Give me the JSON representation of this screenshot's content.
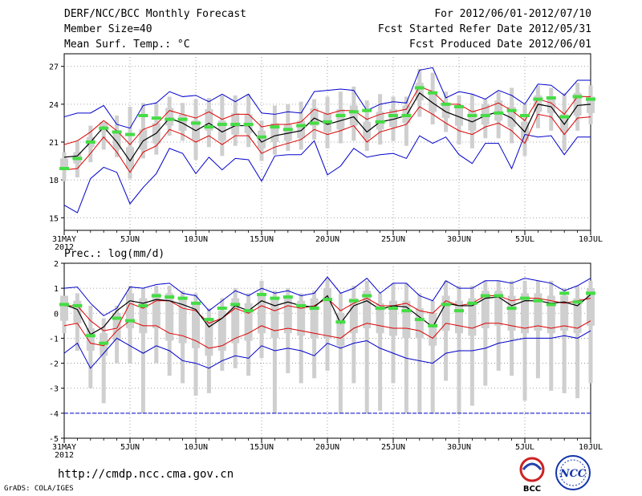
{
  "header": {
    "title": "DERF/NCC/BCC Monthly Forecast",
    "member_size": "Member Size=40",
    "variable": "Mean Surf. Temp.: °C",
    "period": "For 2012/06/01-2012/07/10",
    "start_date": "Fcst Started Refer Date 2012/05/31",
    "produced_date": "Fcst Produced Date 2012/06/01"
  },
  "footer": {
    "url": "http://cmdp.ncc.cma.gov.cn",
    "credit": "GrADS: COLA/IGES",
    "logo_bcc": "BCC",
    "logo_ncc": "NCC"
  },
  "colors": {
    "envelope_max": "#0000cc",
    "envelope_min": "#0000cc",
    "upper_spread": "#dd0000",
    "lower_spread": "#dd0000",
    "ensemble_mean": "#000000",
    "climatology_marker": "#44dd44",
    "box": "#cfcfcf",
    "grid": "#888888"
  },
  "chart_data": [
    {
      "type": "line",
      "title": "Mean Surf. Temp.: °C",
      "xlabel": "",
      "ylabel": "",
      "x": [
        0,
        1,
        2,
        3,
        4,
        5,
        6,
        7,
        8,
        9,
        10,
        11,
        12,
        13,
        14,
        15,
        16,
        17,
        18,
        19,
        20,
        21,
        22,
        23,
        24,
        25,
        26,
        27,
        28,
        29,
        30,
        31,
        32,
        33,
        34,
        35,
        36,
        37,
        38,
        39,
        40
      ],
      "x_tick_positions": [
        0,
        5,
        10,
        15,
        20,
        25,
        30,
        35,
        40
      ],
      "x_tick_labels": [
        "31MAY",
        "5JUN",
        "10JUN",
        "15JUN",
        "20JUN",
        "25JUN",
        "30JUN",
        "5JUL",
        "10JUL"
      ],
      "x_year_label": "2012",
      "ylim": [
        14,
        28
      ],
      "yticks": [
        15,
        18,
        21,
        24,
        27
      ],
      "ytick_labels": [
        "15",
        "18",
        "21",
        "24",
        "27"
      ],
      "grid": true,
      "series": [
        {
          "name": "max",
          "values": [
            23.0,
            23.3,
            23.3,
            23.9,
            22.4,
            22.1,
            23.9,
            24.1,
            25.0,
            24.6,
            24.7,
            24.2,
            24.8,
            24.2,
            24.8,
            23.3,
            23.2,
            23.4,
            23.3,
            25.0,
            25.1,
            25.2,
            25.1,
            23.5,
            24.0,
            24.2,
            24.1,
            26.7,
            26.9,
            24.5,
            25.0,
            24.8,
            24.4,
            25.1,
            24.7,
            24.0,
            25.6,
            25.5,
            24.7,
            25.9,
            25.9
          ]
        },
        {
          "name": "upper",
          "values": [
            20.8,
            21.1,
            21.8,
            22.7,
            21.9,
            20.8,
            22.0,
            22.4,
            23.5,
            23.2,
            22.9,
            23.4,
            22.8,
            23.2,
            23.2,
            22.2,
            22.4,
            22.4,
            22.6,
            23.6,
            23.2,
            23.5,
            23.5,
            22.8,
            23.2,
            23.4,
            23.6,
            25.4,
            25.0,
            24.0,
            24.0,
            23.4,
            23.7,
            24.1,
            23.5,
            22.7,
            24.4,
            24.1,
            23.2,
            24.6,
            24.6
          ]
        },
        {
          "name": "mean",
          "values": [
            19.8,
            19.9,
            21.0,
            22.2,
            21.0,
            19.5,
            21.1,
            21.7,
            22.9,
            22.5,
            21.9,
            22.5,
            21.8,
            22.3,
            22.3,
            21.0,
            21.5,
            21.7,
            21.9,
            22.9,
            22.4,
            22.7,
            23.0,
            21.8,
            22.6,
            22.8,
            23.1,
            24.9,
            24.1,
            23.4,
            23.0,
            22.6,
            23.1,
            23.4,
            22.9,
            21.8,
            24.0,
            23.8,
            22.4,
            23.9,
            24.0
          ]
        },
        {
          "name": "lower",
          "values": [
            18.8,
            18.9,
            20.1,
            21.4,
            20.2,
            18.6,
            20.2,
            20.7,
            22.0,
            21.6,
            21.0,
            21.5,
            20.8,
            21.5,
            21.5,
            20.1,
            20.6,
            20.9,
            21.2,
            22.0,
            21.6,
            21.9,
            22.3,
            21.0,
            21.8,
            22.1,
            22.4,
            23.8,
            23.2,
            22.5,
            21.9,
            21.6,
            22.2,
            22.5,
            21.9,
            20.9,
            23.2,
            23.0,
            21.6,
            22.9,
            23.0
          ]
        },
        {
          "name": "min",
          "values": [
            16.0,
            15.4,
            18.1,
            19.0,
            18.6,
            16.1,
            17.4,
            18.5,
            20.5,
            20.1,
            18.5,
            19.8,
            18.8,
            19.7,
            19.6,
            17.9,
            19.9,
            20.0,
            20.0,
            21.1,
            18.4,
            19.1,
            20.5,
            19.8,
            20.0,
            20.1,
            19.7,
            21.5,
            20.9,
            21.4,
            20.0,
            19.3,
            20.9,
            20.9,
            18.9,
            21.6,
            21.4,
            21.5,
            20.0,
            21.4,
            21.4
          ]
        },
        {
          "name": "climatology",
          "values": [
            18.9,
            19.7,
            21.0,
            22.1,
            21.8,
            21.6,
            23.1,
            22.9,
            22.8,
            22.8,
            22.5,
            22.2,
            22.4,
            22.4,
            22.4,
            21.4,
            22.2,
            22.0,
            22.3,
            22.5,
            22.6,
            23.1,
            23.4,
            23.5,
            22.6,
            23.1,
            23.1,
            25.3,
            24.9,
            24.0,
            23.8,
            23.1,
            23.1,
            23.3,
            23.5,
            23.1,
            24.4,
            24.5,
            23.0,
            24.6,
            24.4
          ]
        },
        {
          "name": "box_high",
          "values": [
            19.7,
            20.2,
            21.4,
            22.6,
            21.9,
            20.6,
            22.0,
            22.5,
            23.7,
            23.2,
            22.7,
            23.6,
            22.7,
            23.3,
            23.2,
            21.9,
            22.5,
            22.4,
            22.7,
            23.7,
            23.3,
            23.6,
            23.9,
            22.6,
            23.4,
            23.6,
            23.9,
            25.7,
            25.0,
            24.1,
            23.8,
            23.5,
            24.0,
            24.3,
            23.8,
            22.6,
            24.7,
            24.5,
            23.2,
            24.9,
            24.6
          ]
        },
        {
          "name": "box_low",
          "values": [
            19.0,
            19.3,
            20.6,
            21.8,
            20.4,
            18.9,
            20.4,
            20.9,
            22.3,
            21.9,
            21.2,
            21.9,
            21.1,
            21.6,
            21.7,
            20.5,
            21.0,
            21.1,
            21.3,
            22.3,
            21.8,
            22.0,
            22.3,
            21.3,
            22.0,
            22.2,
            22.5,
            24.3,
            23.4,
            22.9,
            22.3,
            21.9,
            22.4,
            22.7,
            22.2,
            21.1,
            23.4,
            23.3,
            21.8,
            23.1,
            23.3
          ]
        },
        {
          "name": "whisker_high",
          "values": [
            20.2,
            21.1,
            22.3,
            22.6,
            23.1,
            23.8,
            24.1,
            24.1,
            24.6,
            24.1,
            24.4,
            24.5,
            24.7,
            24.7,
            24.8,
            22.7,
            23.9,
            24.0,
            24.2,
            24.4,
            24.6,
            25.0,
            25.4,
            24.3,
            24.8,
            24.6,
            24.6,
            26.8,
            26.5,
            25.0,
            24.7,
            24.8,
            24.4,
            25.0,
            25.3,
            24.0,
            25.5,
            25.3,
            24.9,
            25.7,
            25.5
          ]
        },
        {
          "name": "whisker_low",
          "values": [
            17.9,
            18.2,
            19.4,
            20.4,
            19.8,
            18.1,
            19.7,
            20.0,
            21.5,
            21.1,
            19.6,
            20.6,
            19.9,
            20.7,
            20.6,
            19.5,
            20.0,
            20.3,
            20.4,
            21.2,
            20.5,
            20.9,
            21.1,
            20.3,
            20.8,
            21.1,
            20.7,
            23.0,
            22.4,
            21.8,
            20.8,
            20.5,
            21.3,
            21.3,
            20.9,
            19.9,
            22.1,
            21.9,
            20.3,
            21.9,
            22.4
          ]
        }
      ]
    },
    {
      "type": "line",
      "title": "Prec.: log(mm/d)",
      "xlabel": "",
      "ylabel": "",
      "x": [
        0,
        1,
        2,
        3,
        4,
        5,
        6,
        7,
        8,
        9,
        10,
        11,
        12,
        13,
        14,
        15,
        16,
        17,
        18,
        19,
        20,
        21,
        22,
        23,
        24,
        25,
        26,
        27,
        28,
        29,
        30,
        31,
        32,
        33,
        34,
        35,
        36,
        37,
        38,
        39,
        40
      ],
      "x_tick_positions": [
        0,
        5,
        10,
        15,
        20,
        25,
        30,
        35,
        40
      ],
      "x_tick_labels": [
        "31MAY",
        "5JUN",
        "10JUN",
        "15JUN",
        "20JUN",
        "25JUN",
        "30JUN",
        "5JUL",
        "10JUL"
      ],
      "x_year_label": "2012",
      "ylim": [
        -5,
        2
      ],
      "yticks": [
        -5,
        -4,
        -3,
        -2,
        -1,
        0,
        1,
        2
      ],
      "ytick_labels": [
        "-5",
        "-4",
        "-3",
        "-2",
        "-1",
        "0",
        "1",
        "2"
      ],
      "grid": true,
      "reference_line": -4,
      "series": [
        {
          "name": "max",
          "values": [
            1.0,
            1.05,
            0.4,
            -0.1,
            0.2,
            1.05,
            1.0,
            1.15,
            1.2,
            0.8,
            0.7,
            0.1,
            0.5,
            0.9,
            0.7,
            1.0,
            0.8,
            0.9,
            0.7,
            0.8,
            1.45,
            0.8,
            1.0,
            1.4,
            0.8,
            1.2,
            1.2,
            0.7,
            0.5,
            1.3,
            1.0,
            1.0,
            1.3,
            1.3,
            1.2,
            1.4,
            1.3,
            1.2,
            0.9,
            1.1,
            1.4
          ]
        },
        {
          "name": "upper",
          "values": [
            0.3,
            0.3,
            -0.3,
            -0.7,
            -0.6,
            0.4,
            0.2,
            0.5,
            0.5,
            0.2,
            0.1,
            -0.4,
            -0.2,
            0.2,
            0.0,
            0.3,
            0.1,
            0.3,
            0.2,
            0.3,
            0.6,
            0.1,
            0.4,
            0.6,
            0.3,
            0.3,
            0.4,
            0.1,
            0.0,
            0.5,
            0.3,
            0.4,
            0.7,
            0.7,
            0.5,
            0.6,
            0.6,
            0.5,
            0.4,
            0.5,
            0.6
          ]
        },
        {
          "name": "mean",
          "values": [
            0.35,
            0.15,
            -0.85,
            -0.55,
            0.1,
            0.5,
            0.4,
            0.55,
            0.5,
            0.35,
            0.15,
            -0.55,
            -0.2,
            0.3,
            0.1,
            0.5,
            0.3,
            0.45,
            0.3,
            0.25,
            0.7,
            -0.4,
            0.3,
            0.5,
            0.15,
            0.3,
            0.25,
            -0.15,
            -0.55,
            0.4,
            0.3,
            0.3,
            0.6,
            0.65,
            0.3,
            0.5,
            0.5,
            0.4,
            0.45,
            0.3,
            0.75
          ]
        },
        {
          "name": "lower",
          "values": [
            -0.5,
            -0.4,
            -1.2,
            -1.3,
            -0.7,
            -0.3,
            -0.5,
            -0.5,
            -0.8,
            -0.9,
            -1.1,
            -1.4,
            -1.3,
            -1.0,
            -0.8,
            -0.5,
            -0.7,
            -0.6,
            -0.7,
            -0.8,
            -0.9,
            -1.0,
            -0.6,
            -0.4,
            -0.5,
            -0.6,
            -0.6,
            -0.7,
            -1.0,
            -0.4,
            -0.5,
            -0.6,
            -0.4,
            -0.4,
            -0.5,
            -0.6,
            -0.5,
            -0.6,
            -0.5,
            -0.6,
            -0.3
          ]
        },
        {
          "name": "min",
          "values": [
            -1.6,
            -1.2,
            -2.2,
            -1.6,
            -1.0,
            -1.3,
            -1.6,
            -1.3,
            -1.5,
            -1.9,
            -2.0,
            -2.2,
            -1.9,
            -1.7,
            -1.8,
            -1.3,
            -1.5,
            -1.4,
            -1.5,
            -1.7,
            -1.2,
            -1.4,
            -1.2,
            -1.1,
            -1.4,
            -1.6,
            -1.8,
            -1.9,
            -2.0,
            -1.6,
            -1.5,
            -1.5,
            -1.4,
            -1.2,
            -1.1,
            -1.0,
            -1.0,
            -1.0,
            -0.9,
            -1.0,
            -0.7
          ]
        },
        {
          "name": "climatology",
          "values": [
            0.35,
            0.3,
            -0.9,
            -1.2,
            -0.2,
            -0.3,
            0.3,
            0.7,
            0.65,
            0.6,
            0.4,
            -0.25,
            0.2,
            0.35,
            0.1,
            0.75,
            0.6,
            0.65,
            0.3,
            0.2,
            0.55,
            -0.35,
            0.5,
            0.7,
            0.2,
            0.2,
            0.1,
            -0.25,
            -0.5,
            0.35,
            0.1,
            0.4,
            0.7,
            0.7,
            0.2,
            0.6,
            0.5,
            0.35,
            0.8,
            0.45,
            0.8
          ]
        },
        {
          "name": "box_high",
          "values": [
            0.7,
            0.5,
            -0.6,
            -0.8,
            0.0,
            0.8,
            0.6,
            0.8,
            0.8,
            0.6,
            0.4,
            -0.2,
            0.1,
            0.6,
            0.4,
            0.8,
            0.6,
            0.7,
            0.5,
            0.6,
            1.0,
            0.0,
            0.6,
            0.9,
            0.4,
            0.5,
            0.5,
            0.2,
            0.0,
            0.7,
            0.5,
            0.6,
            0.9,
            0.9,
            0.7,
            0.8,
            0.8,
            0.7,
            0.7,
            0.6,
            1.0
          ]
        },
        {
          "name": "box_low",
          "values": [
            -0.3,
            -0.4,
            -1.5,
            -1.7,
            -1.1,
            -0.6,
            -0.8,
            -0.6,
            -1.1,
            -1.2,
            -1.4,
            -1.7,
            -1.5,
            -1.2,
            -1.1,
            -0.8,
            -1.0,
            -0.8,
            -0.9,
            -1.0,
            -1.0,
            -1.3,
            -0.8,
            -0.6,
            -0.8,
            -0.9,
            -1.0,
            -1.0,
            -1.3,
            -0.7,
            -0.8,
            -0.9,
            -0.6,
            -0.5,
            -0.7,
            -0.8,
            -0.7,
            -0.8,
            -0.7,
            -0.8,
            -0.5
          ]
        },
        {
          "name": "whisker_high",
          "values": [
            0.6,
            0.8,
            0.3,
            -0.2,
            0.3,
            1.1,
            1.0,
            1.1,
            1.1,
            0.9,
            0.8,
            0.2,
            0.6,
            1.0,
            0.8,
            1.3,
            0.9,
            1.0,
            0.8,
            0.9,
            1.4,
            0.8,
            1.1,
            1.3,
            0.8,
            1.2,
            1.2,
            0.8,
            0.5,
            1.3,
            1.1,
            1.1,
            1.3,
            1.3,
            1.3,
            1.3,
            1.3,
            1.3,
            1.0,
            1.1,
            1.3
          ]
        },
        {
          "name": "whisker_low",
          "values": [
            -0.8,
            -1.5,
            -3.0,
            -3.6,
            -2.0,
            -2.0,
            -4.0,
            -2.0,
            -2.5,
            -2.8,
            -3.3,
            -3.2,
            -2.3,
            -2.2,
            -2.5,
            -1.8,
            -4.0,
            -2.4,
            -2.8,
            -2.6,
            -2.3,
            -4.0,
            -2.8,
            -4.0,
            -3.9,
            -2.8,
            -4.0,
            -4.0,
            -4.0,
            -2.7,
            -4.0,
            -3.7,
            -2.9,
            -2.3,
            -2.5,
            -3.5,
            -2.6,
            -3.1,
            -3.2,
            -3.4,
            -2.8
          ]
        }
      ]
    }
  ]
}
